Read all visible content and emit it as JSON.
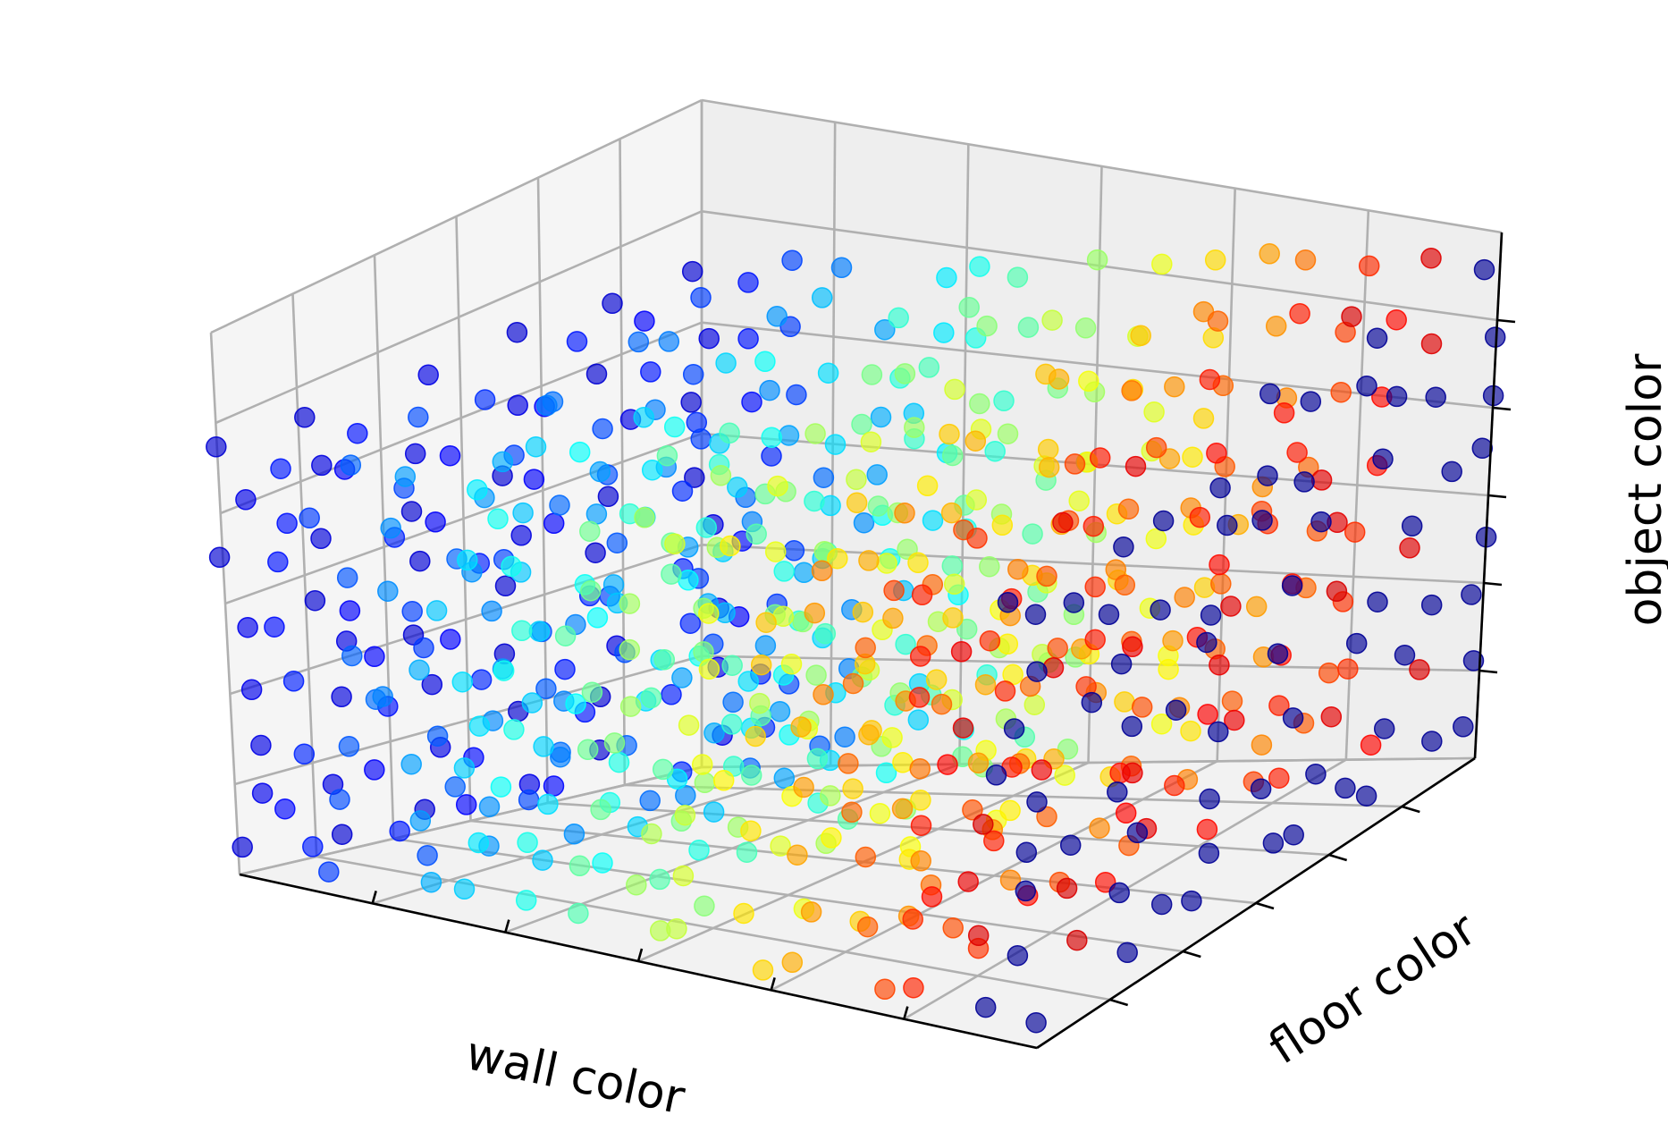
{
  "chart_data": {
    "type": "scatter",
    "dimensions": "3d",
    "xlabel": "wall color",
    "ylabel": "floor color",
    "zlabel": "object color",
    "xlim": [
      0,
      1
    ],
    "ylim": [
      0,
      1
    ],
    "zlim": [
      0,
      1
    ],
    "grid": true,
    "tick_labels_shown": false,
    "colormap": "jet",
    "color_encodes": "wall color (x)",
    "ends_in_dark_blue": true,
    "colors": {
      "pane_left": "#f5f5f5",
      "pane_back": "#eeeeee",
      "pane_floor": "#f2f2f2",
      "marker_alpha": 0.65
    },
    "point_cloud": {
      "layout": "roughly uniform 3d lattice with jitter",
      "x_count": 15,
      "y_count": 6,
      "z_count": 8,
      "x_range": [
        0,
        1
      ],
      "y_range": [
        0,
        1
      ],
      "z_range": [
        0.06,
        0.94
      ],
      "jitter": 0.06,
      "seed": 7
    }
  }
}
